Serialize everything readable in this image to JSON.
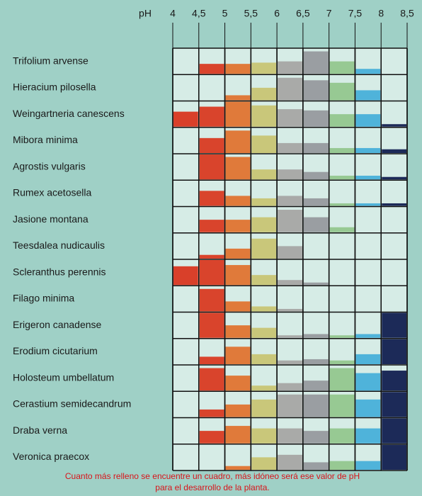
{
  "chart_data": {
    "type": "grid",
    "x_label": "pH",
    "xlim": [
      4,
      8.5
    ],
    "xticks": [
      4,
      {
        "value": 4.5,
        "label": "4,5"
      },
      5,
      {
        "value": 5.5,
        "label": "5,5"
      },
      6,
      {
        "value": 6.5,
        "label": "6,5"
      },
      7,
      {
        "value": 7.5,
        "label": "7,5"
      },
      8,
      {
        "value": 8.5,
        "label": "8,5"
      }
    ],
    "column_colors": [
      "#d9402a",
      "#d9442c",
      "#e07a3a",
      "#c9c77a",
      "#a9aaa8",
      "#9a9ea2",
      "#97c993",
      "#4fb3da",
      "#1c2a58"
    ],
    "series": [
      {
        "name": "Trifolium arvense",
        "values": [
          0,
          0.4,
          0.4,
          0.45,
          0.5,
          0.9,
          0.5,
          0.2,
          0
        ]
      },
      {
        "name": "Hieracium pilosella",
        "values": [
          0,
          0,
          0.2,
          0.5,
          0.9,
          0.8,
          0.7,
          0.4,
          0
        ]
      },
      {
        "name": "Weingartneria canescens",
        "values": [
          0.6,
          0.8,
          1,
          0.85,
          0.7,
          0.65,
          0.5,
          0.5,
          0.1
        ]
      },
      {
        "name": "Mibora minima",
        "values": [
          0,
          0.6,
          0.9,
          0.7,
          0.4,
          0.4,
          0.2,
          0.2,
          0.15
        ]
      },
      {
        "name": "Agrostis vulgaris",
        "values": [
          0,
          1,
          0.9,
          0.4,
          0.4,
          0.3,
          0.15,
          0.15,
          0.1
        ]
      },
      {
        "name": "Rumex acetosella",
        "values": [
          0,
          0.6,
          0.4,
          0.3,
          0.4,
          0.3,
          0.1,
          0.1,
          0.1
        ]
      },
      {
        "name": "Jasione montana",
        "values": [
          0,
          0.5,
          0.5,
          0.6,
          0.9,
          0.6,
          0.2,
          0,
          0
        ]
      },
      {
        "name": "Teesdalea nudicaulis",
        "values": [
          0,
          0.15,
          0.4,
          0.8,
          0.5,
          0,
          0,
          0,
          0
        ]
      },
      {
        "name": "Scleranthus perennis",
        "values": [
          0.75,
          1,
          0.8,
          0.4,
          0.2,
          0.1,
          0,
          0,
          0
        ]
      },
      {
        "name": "Filago minima",
        "values": [
          0,
          0.9,
          0.4,
          0.2,
          0.1,
          0,
          0,
          0,
          0
        ]
      },
      {
        "name": "Erigeron canadense",
        "values": [
          0,
          1,
          0.5,
          0.4,
          0.1,
          0.15,
          0.1,
          0.15,
          1
        ]
      },
      {
        "name": "Erodium cicutarium",
        "values": [
          0,
          0.3,
          0.7,
          0.4,
          0.15,
          0.2,
          0.15,
          0.4,
          1
        ]
      },
      {
        "name": "Holosteum umbellatum",
        "values": [
          0,
          0.9,
          0.6,
          0.2,
          0.3,
          0.4,
          0.9,
          0.7,
          0.8
        ]
      },
      {
        "name": "Cerastium semidecandrum",
        "values": [
          0,
          0.3,
          0.5,
          0.7,
          0.9,
          0.9,
          0.9,
          0.7,
          1
        ]
      },
      {
        "name": "Draba verna",
        "values": [
          0,
          0.5,
          0.7,
          0.6,
          0.6,
          0.5,
          0.6,
          0.6,
          1
        ]
      },
      {
        "name": "Veronica praecox",
        "values": [
          0,
          0,
          0.15,
          0.5,
          0.6,
          0.3,
          0.35,
          0.35,
          1
        ]
      }
    ],
    "caption": [
      "Cuanto más relleno se encuentre un cuadro, más idóneo será ese valor de pH",
      "para el desarrollo de la planta."
    ]
  }
}
